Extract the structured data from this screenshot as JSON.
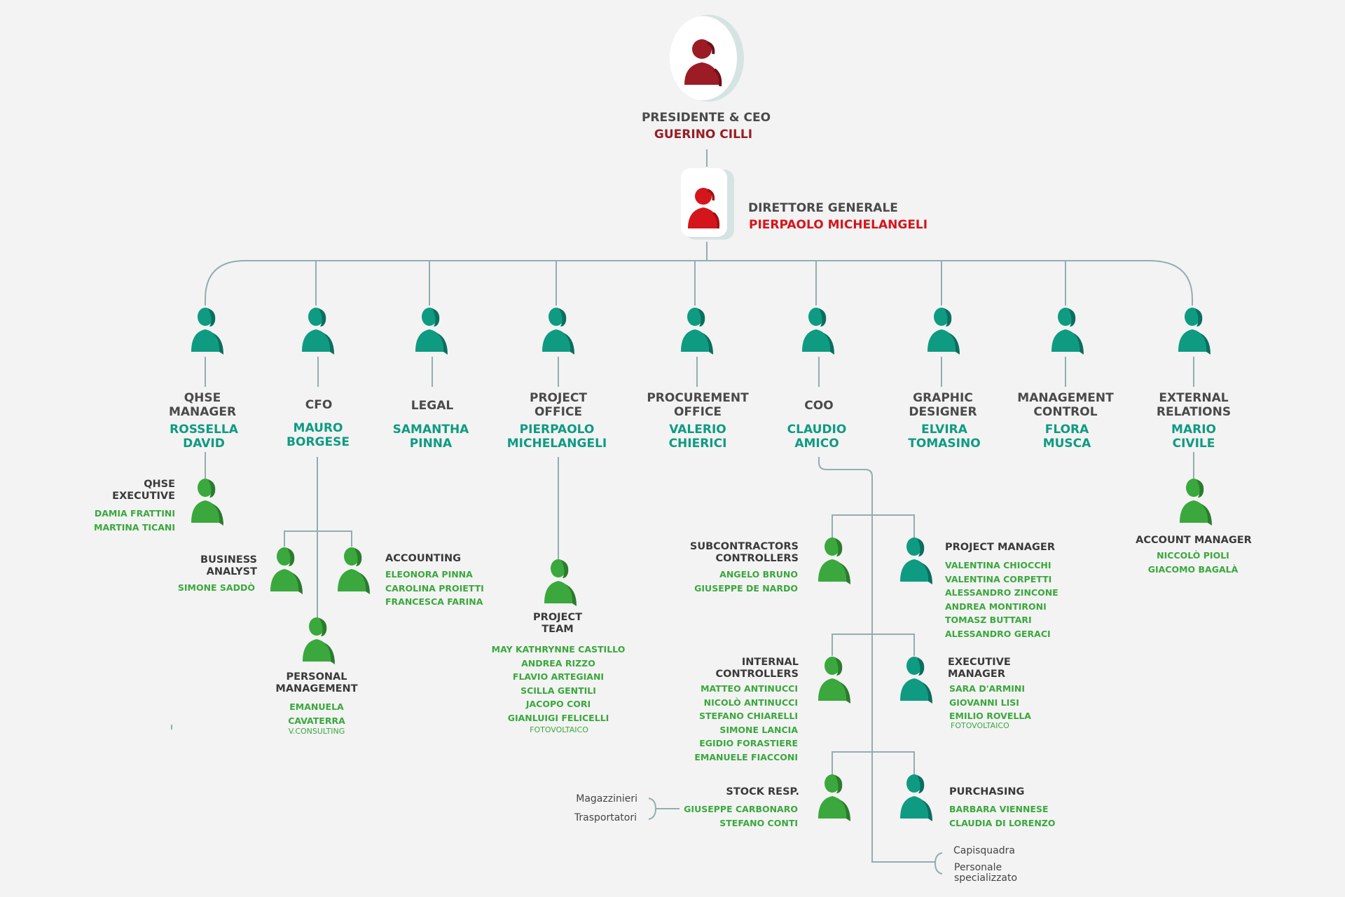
{
  "top": {
    "ceo_role": "PRESIDENTE & CEO",
    "ceo_name": "GUERINO CILLI",
    "dg_role": "DIRETTORE GENERALE",
    "dg_name": "PIERPAOLO MICHELANGELI"
  },
  "departments": [
    {
      "role": [
        "QHSE",
        "MANAGER"
      ],
      "name": [
        "ROSSELLA",
        "DAVID"
      ]
    },
    {
      "role": [
        "CFO"
      ],
      "name": [
        "MAURO",
        "BORGESE"
      ]
    },
    {
      "role": [
        "LEGAL"
      ],
      "name": [
        "SAMANTHA",
        "PINNA"
      ]
    },
    {
      "role": [
        "PROJECT",
        "OFFICE"
      ],
      "name": [
        "PIERPAOLO",
        "MICHELANGELI"
      ]
    },
    {
      "role": [
        "PROCUREMENT",
        "OFFICE"
      ],
      "name": [
        "VALERIO",
        "CHIERICI"
      ]
    },
    {
      "role": [
        "COO"
      ],
      "name": [
        "CLAUDIO",
        "AMICO"
      ]
    },
    {
      "role": [
        "GRAPHIC",
        "DESIGNER"
      ],
      "name": [
        "ELVIRA",
        "TOMASINO"
      ]
    },
    {
      "role": [
        "MANAGEMENT",
        "CONTROL"
      ],
      "name": [
        "FLORA",
        "MUSCA"
      ]
    },
    {
      "role": [
        "EXTERNAL",
        "RELATIONS"
      ],
      "name": [
        "MARIO",
        "CIVILE"
      ]
    }
  ],
  "qhse_exec": {
    "role": [
      "QHSE",
      "EXECUTIVE"
    ],
    "people": [
      "DAMIA FRATTINI",
      "MARTINA TICANI"
    ]
  },
  "business_analyst": {
    "role": [
      "BUSINESS",
      "ANALYST"
    ],
    "people": [
      "SIMONE SADDÒ"
    ]
  },
  "accounting": {
    "role": [
      "ACCOUNTING"
    ],
    "people": [
      "ELEONORA PINNA",
      "CAROLINA PROIETTI",
      "FRANCESCA FARINA"
    ]
  },
  "personal_mgmt": {
    "role": [
      "PERSONAL",
      "MANAGEMENT"
    ],
    "people": [
      "EMANUELA",
      "CAVATERRA"
    ],
    "note": "V.CONSULTING"
  },
  "project_team": {
    "role": [
      "PROJECT",
      "TEAM"
    ],
    "people": [
      "MAY KATHRYNNE CASTILLO",
      "ANDREA RIZZO",
      "FLAVIO ARTEGIANI",
      "SCILLA GENTILI",
      "JACOPO CORI",
      "GIANLUIGI FELICELLI"
    ],
    "note": "FOTOVOLTAICO"
  },
  "account_mgr": {
    "role": [
      "ACCOUNT MANAGER"
    ],
    "people": [
      "NICCOLÒ PIOLI",
      "GIACOMO BAGALÀ"
    ]
  },
  "subcontractors": {
    "role": [
      "SUBCONTRACTORS",
      "CONTROLLERS"
    ],
    "people": [
      "ANGELO BRUNO",
      "GIUSEPPE DE NARDO"
    ]
  },
  "project_manager": {
    "role": [
      "PROJECT MANAGER"
    ],
    "people": [
      "VALENTINA CHIOCCHI",
      "VALENTINA CORPETTI",
      "ALESSANDRO ZINCONE",
      "ANDREA MONTIRONI",
      "TOMASZ BUTTARI",
      "ALESSANDRO GERACI"
    ]
  },
  "internal_controllers": {
    "role": [
      "INTERNAL",
      "CONTROLLERS"
    ],
    "people": [
      "MATTEO ANTINUCCI",
      "NICOLÒ ANTINUCCI",
      "STEFANO CHIARELLI",
      "SIMONE LANCIA",
      "EGIDIO FORASTIERE",
      "EMANUELE FIACCONI"
    ]
  },
  "executive_mgr": {
    "role": [
      "EXECUTIVE",
      "MANAGER"
    ],
    "people": [
      "SARA D'ARMINI",
      "GIOVANNI LISI",
      "EMILIO ROVELLA"
    ],
    "note": "FOTOVOLTAICO"
  },
  "stock_resp": {
    "role": [
      "STOCK RESP."
    ],
    "people": [
      "GIUSEPPE CARBONARO",
      "STEFANO CONTI"
    ]
  },
  "purchasing": {
    "role": [
      "PURCHASING"
    ],
    "people": [
      "BARBARA VIENNESE",
      "CLAUDIA DI LORENZO"
    ]
  },
  "stock_extras": [
    "Magazzinieri",
    "Trasportatori"
  ],
  "coo_extras": [
    "Capisquadra",
    "Personale",
    "specializzato"
  ],
  "colors": {
    "teal": "#0e9b82",
    "green": "#3aa83d",
    "dark_red": "#9b1c24",
    "red": "#d4161c",
    "line": "#93adb0"
  }
}
